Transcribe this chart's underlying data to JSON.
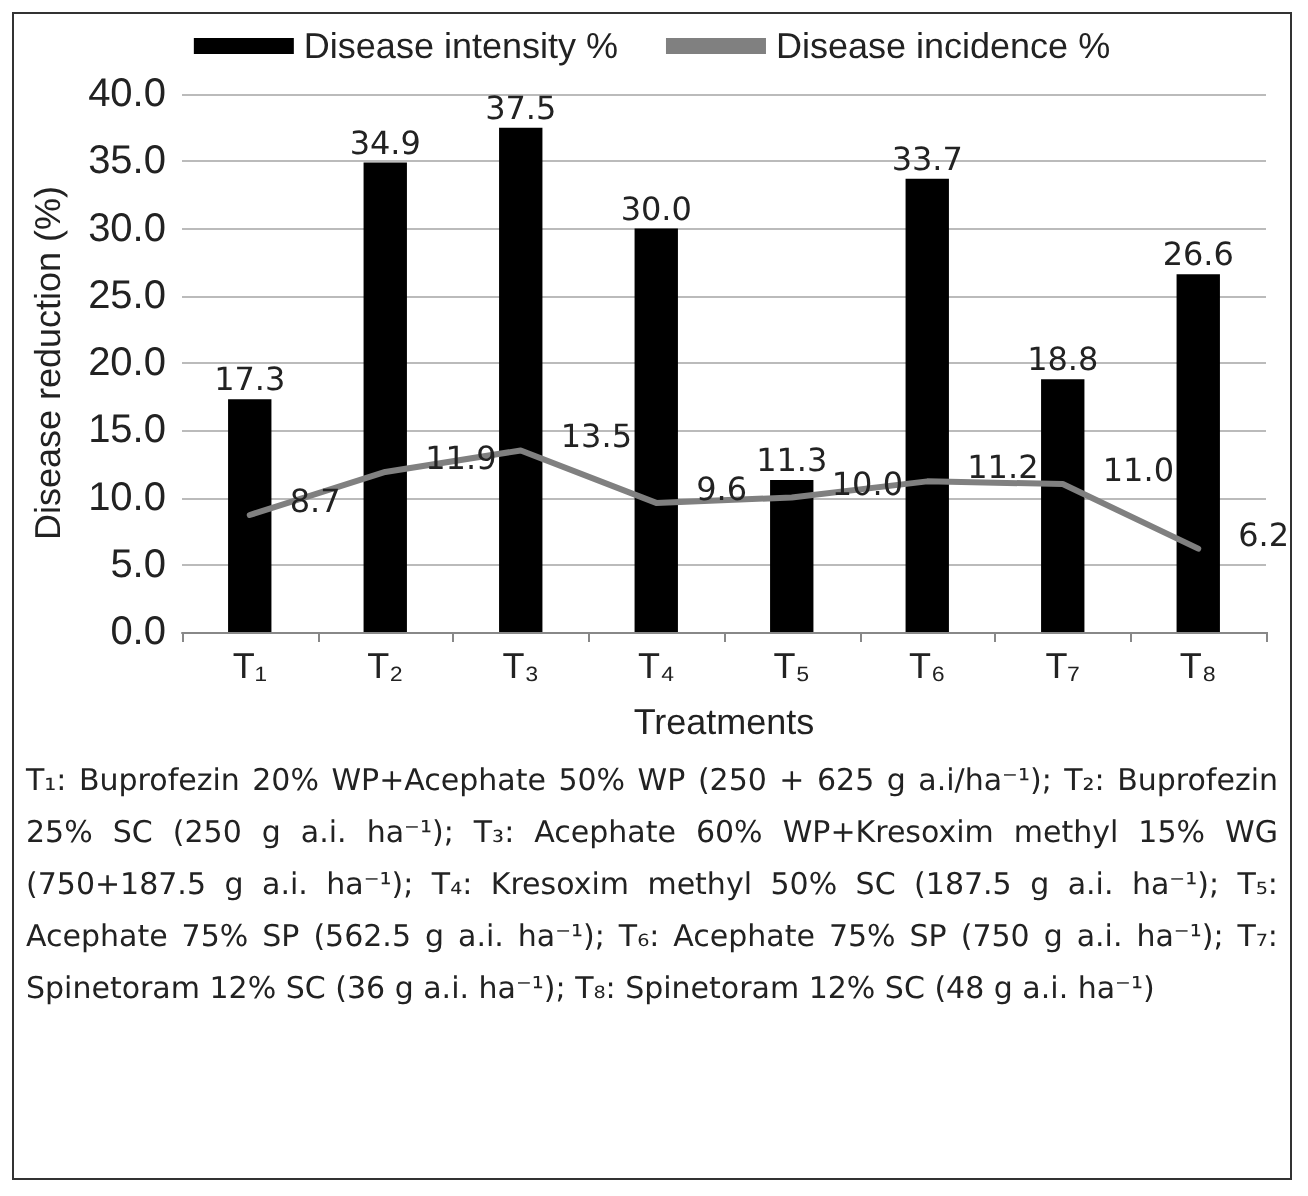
{
  "chart_data": {
    "type": "bar",
    "xlabel": "Treatments",
    "ylabel": "Disease reduction (%)",
    "categories": [
      "T₁",
      "T₂",
      "T₃",
      "T₄",
      "T₅",
      "T₆",
      "T₇",
      "T₈"
    ],
    "series": [
      {
        "name": "Disease intensity %",
        "color": "#000000",
        "values": [
          17.3,
          34.9,
          37.5,
          30.0,
          11.3,
          33.7,
          18.8,
          26.6
        ],
        "value_labels": [
          "17.3",
          "34.9",
          "37.5",
          "30.0",
          "11.3",
          "33.7",
          "18.8",
          "26.6"
        ]
      },
      {
        "name": "Disease incidence %",
        "type": "line",
        "color": "#808080",
        "values": [
          8.7,
          11.9,
          13.5,
          9.6,
          10.0,
          11.2,
          11.0,
          6.2
        ],
        "value_labels": [
          "8.7",
          "11.9",
          "13.5",
          "9.6",
          "10.0",
          "11.2",
          "11.0",
          "6.2"
        ]
      }
    ],
    "ylim": [
      0,
      40
    ],
    "yticks": [
      {
        "value": 0,
        "label": "0.0"
      },
      {
        "value": 5,
        "label": "5.0"
      },
      {
        "value": 10,
        "label": "10.0"
      },
      {
        "value": 15,
        "label": "15.0"
      },
      {
        "value": 20,
        "label": "20.0"
      },
      {
        "value": 25,
        "label": "25.0"
      },
      {
        "value": 30,
        "label": "30.0"
      },
      {
        "value": 35,
        "label": "35.0"
      },
      {
        "value": 40,
        "label": "40.0"
      }
    ],
    "grid": "y",
    "legend": "top",
    "marker": "none",
    "line_style": "solid",
    "annotations": [
      "T₁: Buprofezin 20%  WP+Acephate 50% WP (250 + 625 g a.i/ha⁻¹); T₂: Buprofezin 25% SC (250 g a.i. ha⁻¹); T₃: Acephate 60% WP+Kresoxim methyl 15% WG (750+187.5 g a.i. ha⁻¹); T₄: Kresoxim methyl 50% SC  (187.5 g a.i. ha⁻¹); T₅: Acephate 75% SP (562.5 g a.i. ha⁻¹); T₆: Acephate 75% SP (750 g a.i. ha⁻¹); T₇: Spinetoram 12% SC  (36 g a.i. ha⁻¹); T₈: Spinetoram 12% SC (48 g a.i. ha⁻¹)"
    ]
  }
}
